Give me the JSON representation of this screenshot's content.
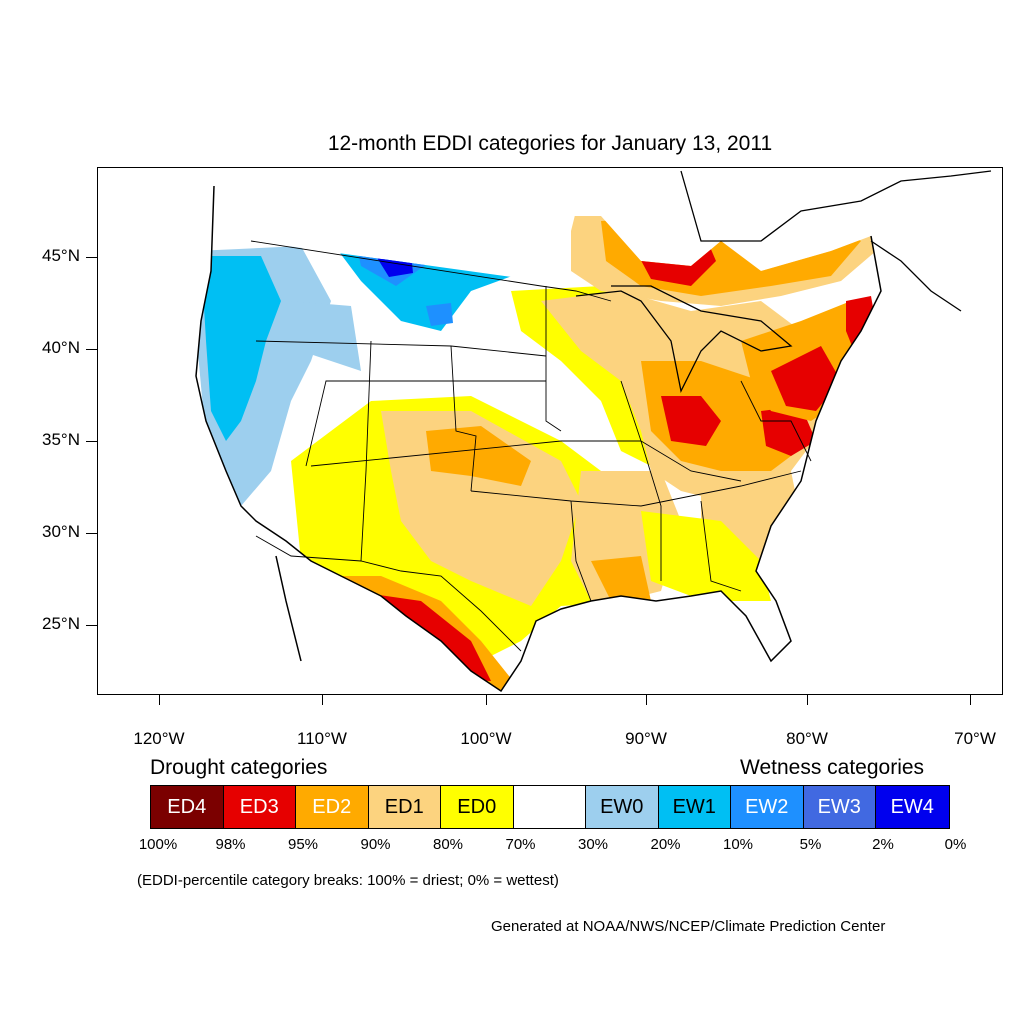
{
  "title": "12-month EDDI categories for January 13, 2011",
  "lat_labels": [
    "45°N",
    "40°N",
    "35°N",
    "30°N",
    "25°N"
  ],
  "lon_labels": [
    "120°W",
    "110°W",
    "100°W",
    "90°W",
    "80°W",
    "70°W"
  ],
  "legend": {
    "drought_heading": "Drought categories",
    "wetness_heading": "Wetness categories",
    "categories": [
      {
        "label": "ED4",
        "color": "#7b0000",
        "text_color": "#ffffff"
      },
      {
        "label": "ED3",
        "color": "#e60000",
        "text_color": "#ffffff"
      },
      {
        "label": "ED2",
        "color": "#ffaa00",
        "text_color": "#ffffff"
      },
      {
        "label": "ED1",
        "color": "#fcd37f",
        "text_color": "#000000"
      },
      {
        "label": "ED0",
        "color": "#ffff00",
        "text_color": "#000000"
      },
      {
        "label": "",
        "color": "#ffffff",
        "text_color": "#000000"
      },
      {
        "label": "EW0",
        "color": "#9dcfee",
        "text_color": "#000000"
      },
      {
        "label": "EW1",
        "color": "#00bff3",
        "text_color": "#000000"
      },
      {
        "label": "EW2",
        "color": "#1e90ff",
        "text_color": "#ffffff"
      },
      {
        "label": "EW3",
        "color": "#4169e1",
        "text_color": "#ffffff"
      },
      {
        "label": "EW4",
        "color": "#0000ee",
        "text_color": "#ffffff"
      }
    ],
    "percent_breaks": [
      "100%",
      "98%",
      "95%",
      "90%",
      "80%",
      "70%",
      "30%",
      "20%",
      "10%",
      "5%",
      "2%",
      "0%"
    ]
  },
  "note": "(EDDI-percentile category breaks: 100% = driest; 0% = wettest)",
  "credit": "Generated at NOAA/NWS/NCEP/Climate Prediction Center"
}
